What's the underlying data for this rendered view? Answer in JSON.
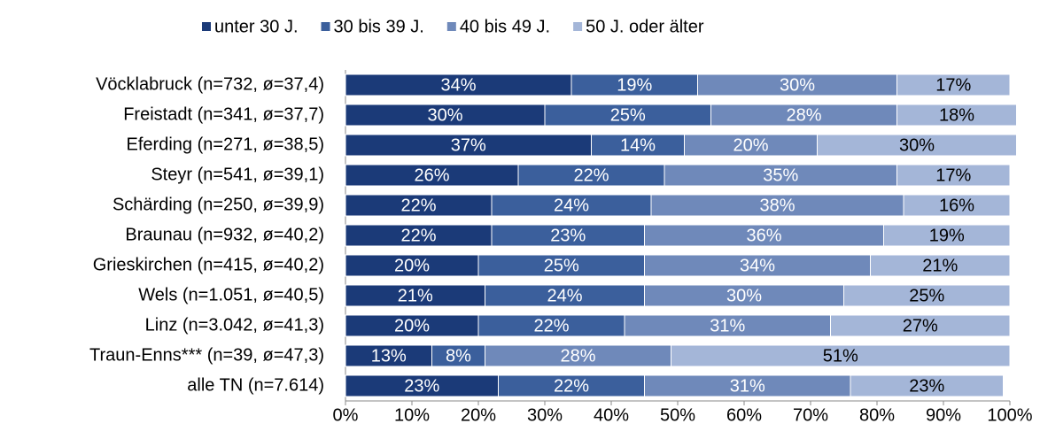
{
  "chart_data": {
    "type": "stacked_bar_horizontal",
    "categories": [
      "Vöcklabruck (n=732, ø=37,4)",
      "Freistadt (n=341, ø=37,7)",
      "Eferding (n=271, ø=38,5)",
      "Steyr (n=541, ø=39,1)",
      "Schärding (n=250, ø=39,9)",
      "Braunau (n=932, ø=40,2)",
      "Grieskirchen (n=415, ø=40,2)",
      "Wels (n=1.051, ø=40,5)",
      "Linz (n=3.042, ø=41,3)",
      "Traun-Enns*** (n=39, ø=47,3)",
      "alle TN (n=7.614)"
    ],
    "series": [
      {
        "name": "unter 30 J.",
        "color": "#1b3a78",
        "values": [
          34,
          30,
          37,
          26,
          22,
          22,
          20,
          21,
          20,
          13,
          23
        ],
        "value_labels": [
          "34%",
          "30%",
          "37%",
          "26%",
          "22%",
          "22%",
          "20%",
          "21%",
          "20%",
          "13%",
          "23%"
        ]
      },
      {
        "name": "30 bis 39 J.",
        "color": "#3b5f9c",
        "values": [
          19,
          25,
          14,
          22,
          24,
          23,
          25,
          24,
          22,
          8,
          22
        ],
        "value_labels": [
          "19%",
          "25%",
          "14%",
          "22%",
          "24%",
          "23%",
          "25%",
          "24%",
          "22%",
          "8%",
          "22%"
        ]
      },
      {
        "name": "40 bis 49 J.",
        "color": "#6f89ba",
        "values": [
          30,
          28,
          20,
          35,
          38,
          36,
          34,
          30,
          31,
          28,
          31
        ],
        "value_labels": [
          "30%",
          "28%",
          "20%",
          "35%",
          "38%",
          "36%",
          "34%",
          "30%",
          "31%",
          "28%",
          "31%"
        ]
      },
      {
        "name": "50 J. oder älter",
        "color": "#a4b6d8",
        "values": [
          17,
          18,
          30,
          17,
          16,
          19,
          21,
          25,
          27,
          51,
          23
        ],
        "value_labels": [
          "17%",
          "18%",
          "30%",
          "17%",
          "16%",
          "19%",
          "21%",
          "25%",
          "27%",
          "51%",
          "23%"
        ]
      }
    ],
    "xlim": [
      0,
      100
    ],
    "xticks": [
      {
        "value": 0,
        "label": "0%"
      },
      {
        "value": 10,
        "label": "10%"
      },
      {
        "value": 20,
        "label": "20%"
      },
      {
        "value": 30,
        "label": "30%"
      },
      {
        "value": 40,
        "label": "40%"
      },
      {
        "value": 50,
        "label": "50%"
      },
      {
        "value": 60,
        "label": "60%"
      },
      {
        "value": 70,
        "label": "70%"
      },
      {
        "value": 80,
        "label": "80%"
      },
      {
        "value": 90,
        "label": "90%"
      },
      {
        "value": 100,
        "label": "100%"
      }
    ],
    "grid": false,
    "legend": "top"
  }
}
